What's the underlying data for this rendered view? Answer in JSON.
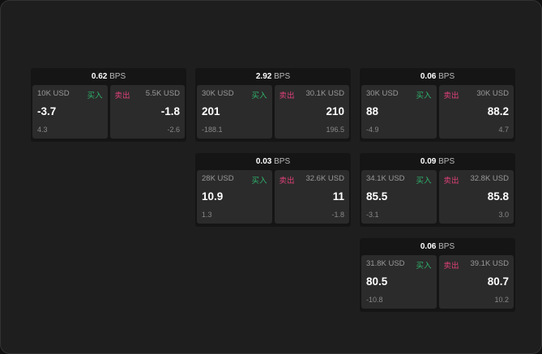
{
  "bps_unit": "BPS",
  "buy_label": "买入",
  "sell_label": "卖出",
  "colors": {
    "buy": "#2fb36b",
    "sell": "#e0407a"
  },
  "cards": [
    {
      "spread": "0.62",
      "bid": {
        "size": "10K USD",
        "price": "-3.7",
        "change": "4.3"
      },
      "ask": {
        "size": "5.5K USD",
        "price": "-1.8",
        "change": "-2.6"
      }
    },
    {
      "spread": "2.92",
      "bid": {
        "size": "30K USD",
        "price": "201",
        "change": "-188.1"
      },
      "ask": {
        "size": "30.1K USD",
        "price": "210",
        "change": "196.5"
      }
    },
    {
      "spread": "0.06",
      "bid": {
        "size": "30K USD",
        "price": "88",
        "change": "-4.9"
      },
      "ask": {
        "size": "30K USD",
        "price": "88.2",
        "change": "4.7"
      }
    },
    {
      "spread": "0.03",
      "bid": {
        "size": "28K USD",
        "price": "10.9",
        "change": "1.3"
      },
      "ask": {
        "size": "32.6K USD",
        "price": "11",
        "change": "-1.8"
      }
    },
    {
      "spread": "0.09",
      "bid": {
        "size": "34.1K USD",
        "price": "85.5",
        "change": "-3.1"
      },
      "ask": {
        "size": "32.8K USD",
        "price": "85.8",
        "change": "3.0"
      }
    },
    {
      "spread": "0.06",
      "bid": {
        "size": "31.8K USD",
        "price": "80.5",
        "change": "-10.8"
      },
      "ask": {
        "size": "39.1K USD",
        "price": "80.7",
        "change": "10.2"
      }
    }
  ]
}
